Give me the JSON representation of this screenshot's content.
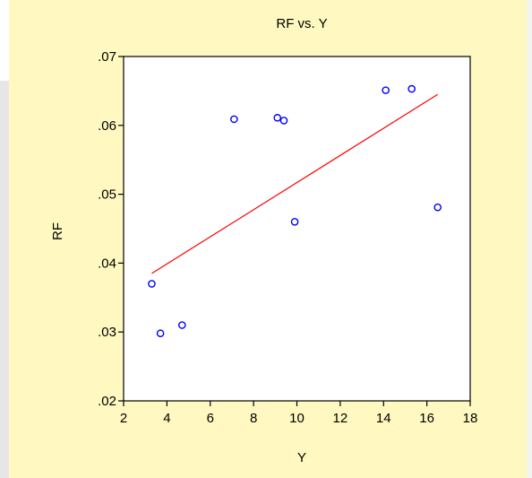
{
  "chart_data": {
    "type": "scatter",
    "title": "RF vs. Y",
    "xlabel": "Y",
    "ylabel": "RF",
    "xlim": [
      2,
      18
    ],
    "ylim": [
      0.02,
      0.07
    ],
    "x_ticks": [
      {
        "value": 2,
        "label": "2"
      },
      {
        "value": 4,
        "label": "4"
      },
      {
        "value": 6,
        "label": "6"
      },
      {
        "value": 8,
        "label": "8"
      },
      {
        "value": 10,
        "label": "10"
      },
      {
        "value": 12,
        "label": "12"
      },
      {
        "value": 14,
        "label": "14"
      },
      {
        "value": 16,
        "label": "16"
      },
      {
        "value": 18,
        "label": "18"
      }
    ],
    "y_ticks": [
      {
        "value": 0.02,
        "label": ".02"
      },
      {
        "value": 0.03,
        "label": ".03"
      },
      {
        "value": 0.04,
        "label": ".04"
      },
      {
        "value": 0.05,
        "label": ".05"
      },
      {
        "value": 0.06,
        "label": ".06"
      },
      {
        "value": 0.07,
        "label": ".07"
      }
    ],
    "points": [
      {
        "x": 3.3,
        "y": 0.037
      },
      {
        "x": 3.7,
        "y": 0.0298
      },
      {
        "x": 4.7,
        "y": 0.031
      },
      {
        "x": 7.1,
        "y": 0.0609
      },
      {
        "x": 9.1,
        "y": 0.0611
      },
      {
        "x": 9.4,
        "y": 0.0607
      },
      {
        "x": 9.9,
        "y": 0.046
      },
      {
        "x": 14.1,
        "y": 0.0651
      },
      {
        "x": 15.3,
        "y": 0.0653
      },
      {
        "x": 16.5,
        "y": 0.0481
      }
    ],
    "fit_line": {
      "x": [
        3.3,
        16.5
      ],
      "y": [
        0.0385,
        0.0645
      ]
    },
    "grid": false,
    "colors": {
      "background": "#fff8c0",
      "plot_background": "#ffffff",
      "marker": "#0000ff",
      "fit_line": "#ff0000"
    }
  }
}
